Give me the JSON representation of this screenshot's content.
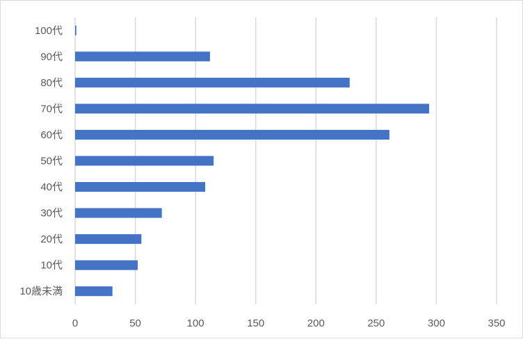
{
  "chart_data": {
    "type": "bar",
    "orientation": "horizontal",
    "categories": [
      "10歳未満",
      "10代",
      "20代",
      "30代",
      "40代",
      "50代",
      "60代",
      "70代",
      "80代",
      "90代",
      "100代"
    ],
    "values": [
      31,
      52,
      55,
      72,
      108,
      115,
      261,
      294,
      228,
      112,
      1
    ],
    "xlim": [
      0,
      350
    ],
    "xticks": [
      0,
      50,
      100,
      150,
      200,
      250,
      300,
      350
    ],
    "title": "",
    "xlabel": "",
    "ylabel": "",
    "grid": "vertical",
    "legend": "none",
    "bar_color": "#4472c4",
    "grid_color": "#d9d9d9"
  }
}
